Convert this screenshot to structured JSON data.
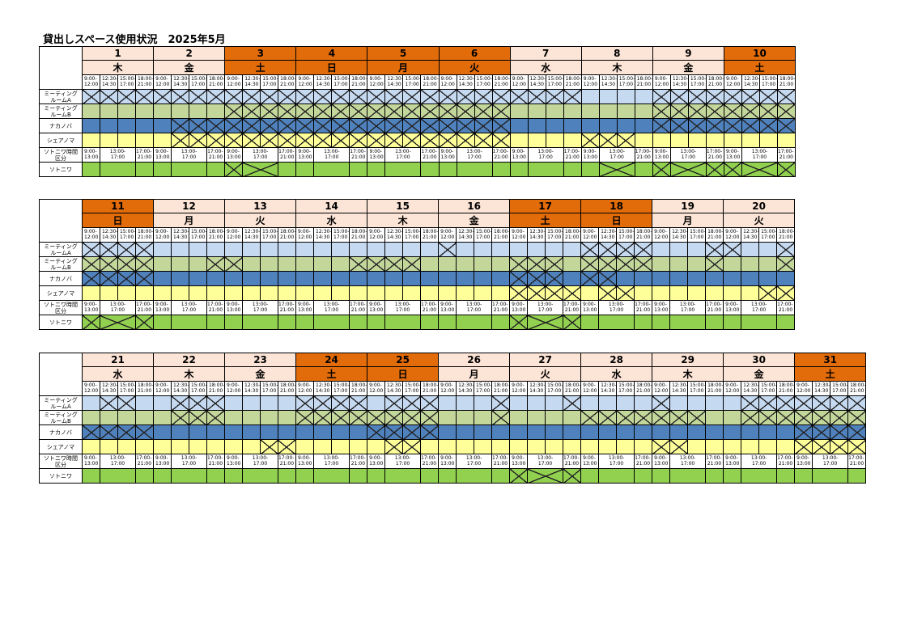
{
  "title": "貸出しスペース使用状況　2025年5月",
  "room_labels": {
    "room_a": "ミーティング\nルームA",
    "room_b": "ミーティング\nルームB",
    "nakanoba": "ナカノバ",
    "sharenoma": "シェアノマ",
    "sotoniwa_slots": "ソトニワ時間\n区分",
    "sotoniwa": "ソトニワ"
  },
  "slot_labels": [
    "9:00-\n12:00",
    "12:30-\n14:30",
    "15:00-\n17:00",
    "18:00-\n21:00"
  ],
  "sotoniwa_slot_labels": [
    "9:00-\n13:00",
    "13:00-\n17:00",
    "17:00-\n21:00"
  ],
  "colors": {
    "weekday_header": "#fce4d6",
    "weekend_header": "#e26b0a",
    "room_a": "#c5d9f1",
    "room_b": "#c4d79b",
    "nakanoba": "#4f81bd",
    "sharenoma": "#ffff99",
    "sotoniwa_slots": "#d9d9d9",
    "sotoniwa": "#92d050"
  },
  "weeks": [
    [
      {
        "date": "1",
        "dow": "木",
        "we": false,
        "a": "1111",
        "b": "0000",
        "n": "0000",
        "s": "0000",
        "o": "000"
      },
      {
        "date": "2",
        "dow": "金",
        "we": false,
        "a": "1111",
        "b": "0000",
        "n": "0111",
        "s": "0111",
        "o": "000"
      },
      {
        "date": "3",
        "dow": "土",
        "we": true,
        "a": "1111",
        "b": "1111",
        "n": "1111",
        "s": "1111",
        "o": "110"
      },
      {
        "date": "4",
        "dow": "日",
        "we": true,
        "a": "1111",
        "b": "1111",
        "n": "1111",
        "s": "1111",
        "o": "000"
      },
      {
        "date": "5",
        "dow": "月",
        "we": true,
        "a": "1111",
        "b": "1111",
        "n": "1111",
        "s": "1111",
        "o": "000"
      },
      {
        "date": "6",
        "dow": "火",
        "we": true,
        "a": "1111",
        "b": "1111",
        "n": "1111",
        "s": "1111",
        "o": "000"
      },
      {
        "date": "7",
        "dow": "水",
        "we": false,
        "a": "1111",
        "b": "0000",
        "n": "0000",
        "s": "0000",
        "o": "000"
      },
      {
        "date": "8",
        "dow": "木",
        "we": false,
        "a": "0000",
        "b": "0000",
        "n": "0000",
        "s": "1110",
        "o": "010"
      },
      {
        "date": "9",
        "dow": "金",
        "we": false,
        "a": "1111",
        "b": "1111",
        "n": "1111",
        "s": "0000",
        "o": "111"
      },
      {
        "date": "10",
        "dow": "土",
        "we": true,
        "a": "1111",
        "b": "1111",
        "n": "1111",
        "s": "0000",
        "o": "111"
      }
    ],
    [
      {
        "date": "11",
        "dow": "日",
        "we": true,
        "a": "1111",
        "b": "1111",
        "n": "1111",
        "s": "0000",
        "o": "111"
      },
      {
        "date": "12",
        "dow": "月",
        "we": false,
        "a": "0000",
        "b": "0001",
        "n": "0000",
        "s": "0000",
        "o": "000"
      },
      {
        "date": "13",
        "dow": "火",
        "we": false,
        "a": "0000",
        "b": "1000",
        "n": "0000",
        "s": "0000",
        "o": "000"
      },
      {
        "date": "14",
        "dow": "水",
        "we": false,
        "a": "0000",
        "b": "0001",
        "n": "0000",
        "s": "0000",
        "o": "000"
      },
      {
        "date": "15",
        "dow": "木",
        "we": false,
        "a": "0000",
        "b": "1110",
        "n": "0000",
        "s": "0000",
        "o": "000"
      },
      {
        "date": "16",
        "dow": "金",
        "we": false,
        "a": "1000",
        "b": "0000",
        "n": "0000",
        "s": "0000",
        "o": "000"
      },
      {
        "date": "17",
        "dow": "土",
        "we": true,
        "a": "0000",
        "b": "1110",
        "n": "1110",
        "s": "1111",
        "o": "111"
      },
      {
        "date": "18",
        "dow": "日",
        "we": true,
        "a": "1111",
        "b": "1111",
        "n": "1100",
        "s": "0110",
        "o": "000"
      },
      {
        "date": "19",
        "dow": "月",
        "we": false,
        "a": "0001",
        "b": "0001",
        "n": "0000",
        "s": "0000",
        "o": "000"
      },
      {
        "date": "20",
        "dow": "火",
        "we": false,
        "a": "1001",
        "b": "0001",
        "n": "0000",
        "s": "0011",
        "o": "000"
      }
    ],
    [
      {
        "date": "21",
        "dow": "水",
        "we": false,
        "a": "0110",
        "b": "0000",
        "n": "1111",
        "s": "0000",
        "o": "000"
      },
      {
        "date": "22",
        "dow": "木",
        "we": false,
        "a": "0111",
        "b": "0111",
        "n": "0000",
        "s": "0000",
        "o": "000"
      },
      {
        "date": "23",
        "dow": "金",
        "we": false,
        "a": "0000",
        "b": "0000",
        "n": "0000",
        "s": "0011",
        "o": "000"
      },
      {
        "date": "24",
        "dow": "土",
        "we": true,
        "a": "1111",
        "b": "1111",
        "n": "0000",
        "s": "0000",
        "o": "000"
      },
      {
        "date": "25",
        "dow": "日",
        "we": true,
        "a": "0111",
        "b": "1111",
        "n": "1111",
        "s": "0110",
        "o": "000"
      },
      {
        "date": "26",
        "dow": "月",
        "we": false,
        "a": "0001",
        "b": "0001",
        "n": "0000",
        "s": "0000",
        "o": "000"
      },
      {
        "date": "27",
        "dow": "火",
        "we": false,
        "a": "0001",
        "b": "0000",
        "n": "0000",
        "s": "0000",
        "o": "111"
      },
      {
        "date": "28",
        "dow": "水",
        "we": false,
        "a": "0000",
        "b": "1111",
        "n": "0000",
        "s": "0000",
        "o": "000"
      },
      {
        "date": "29",
        "dow": "木",
        "we": false,
        "a": "1000",
        "b": "1110",
        "n": "0000",
        "s": "1100",
        "o": "000"
      },
      {
        "date": "30",
        "dow": "金",
        "we": false,
        "a": "0111",
        "b": "0111",
        "n": "0000",
        "s": "0000",
        "o": "000"
      },
      {
        "date": "31",
        "dow": "土",
        "we": true,
        "a": "1111",
        "b": "1111",
        "n": "1111",
        "s": "1111",
        "o": "000"
      }
    ]
  ]
}
